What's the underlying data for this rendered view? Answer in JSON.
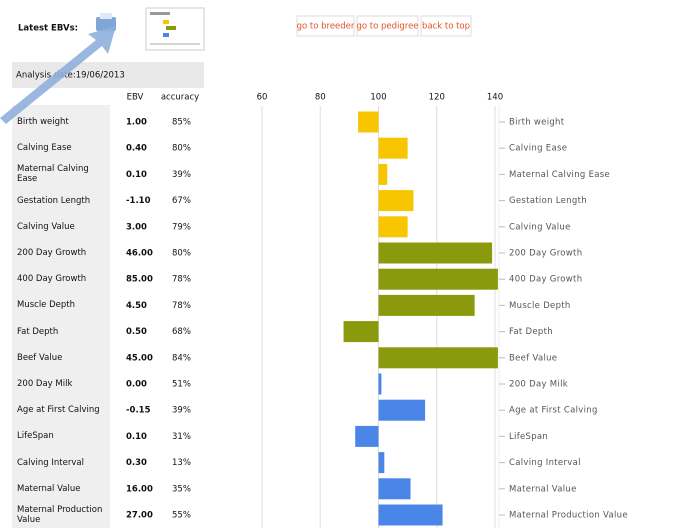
{
  "header": {
    "title": "Latest EBVs:",
    "buttons": [
      "go to breeder",
      "go to pedigree",
      "back to top"
    ]
  },
  "analysis_date": "Analysis date:19/06/2013",
  "table": {
    "columns": [
      "EBV",
      "accuracy"
    ],
    "rows": [
      [
        "Birth weight",
        "1.00",
        "85%"
      ],
      [
        "Calving Ease",
        "0.40",
        "80%"
      ],
      [
        "Maternal Calving Ease",
        "0.10",
        "39%"
      ],
      [
        "Gestation Length",
        "-1.10",
        "67%"
      ],
      [
        "Calving Value",
        "3.00",
        "79%"
      ],
      [
        "200 Day Growth",
        "46.00",
        "80%"
      ],
      [
        "400 Day Growth",
        "85.00",
        "78%"
      ],
      [
        "Muscle Depth",
        "4.50",
        "78%"
      ],
      [
        "Fat Depth",
        "0.50",
        "68%"
      ],
      [
        "Beef Value",
        "45.00",
        "84%"
      ],
      [
        "200 Day Milk",
        "0.00",
        "51%"
      ],
      [
        "Age at First Calving",
        "-0.15",
        "39%"
      ],
      [
        "LifeSpan",
        "0.10",
        "31%"
      ],
      [
        "Calving Interval",
        "0.30",
        "13%"
      ],
      [
        "Maternal Value",
        "16.00",
        "35%"
      ],
      [
        "Maternal Production Value",
        "27.00",
        "55%"
      ]
    ]
  },
  "chart_data": {
    "type": "hbar",
    "categories": [
      "Birth weight",
      "Calving Ease",
      "Maternal Calving Ease",
      "Gestation Length",
      "Calving Value",
      "200 Day Growth",
      "400 Day Growth",
      "Muscle Depth",
      "Fat Depth",
      "Beef Value",
      "200 Day Milk",
      "Age at First Calving",
      "LifeSpan",
      "Calving Interval",
      "Maternal Value",
      "Maternal Production Value"
    ],
    "values": [
      93,
      110,
      103,
      112,
      110,
      139,
      141,
      133,
      88,
      141,
      101,
      116,
      92,
      102,
      111,
      122
    ],
    "colors": [
      "#f7c600",
      "#f7c600",
      "#f7c600",
      "#f7c600",
      "#f7c600",
      "#8a9a0c",
      "#8a9a0c",
      "#8a9a0c",
      "#8a9a0c",
      "#8a9a0c",
      "#4a86e8",
      "#4a86e8",
      "#4a86e8",
      "#4a86e8",
      "#4a86e8",
      "#4a86e8"
    ],
    "xlim": [
      60,
      140
    ],
    "xticks": [
      60,
      80,
      100,
      120,
      140
    ],
    "grid": true
  }
}
